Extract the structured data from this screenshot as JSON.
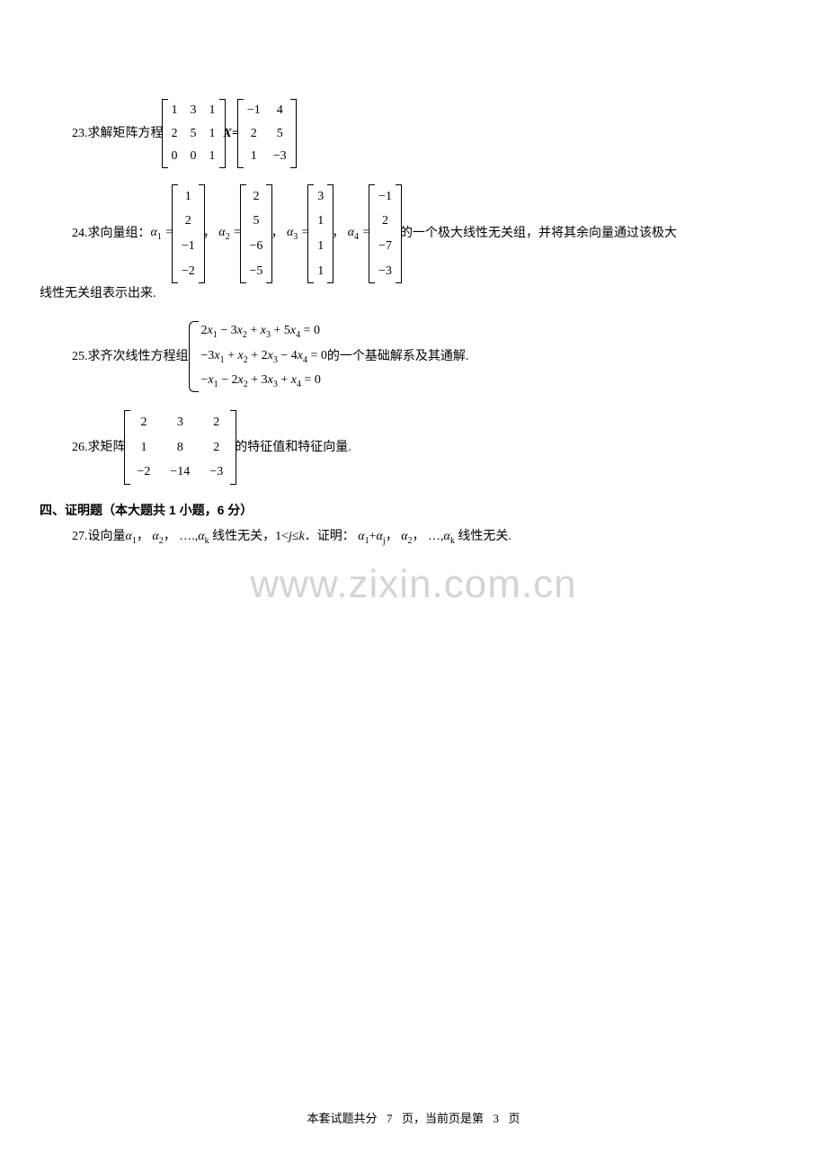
{
  "problems": {
    "p23": {
      "prefix": "23.求解矩阵方程",
      "matA": [
        [
          "1",
          "3",
          "1"
        ],
        [
          "2",
          "5",
          "1"
        ],
        [
          "0",
          "0",
          "1"
        ]
      ],
      "mid": "X=",
      "matB": [
        [
          "−1",
          "4"
        ],
        [
          "2",
          "5"
        ],
        [
          "1",
          "−3"
        ]
      ]
    },
    "p24": {
      "prefix": "24.求向量组：",
      "a_lbl": [
        "α",
        ""
      ],
      "vec1": [
        "1",
        "2",
        "−1",
        "−2"
      ],
      "vec2": [
        "2",
        "5",
        "−6",
        "−5"
      ],
      "vec3": [
        "3",
        "1",
        "1",
        "1"
      ],
      "vec4": [
        "−1",
        "2",
        "−7",
        "−3"
      ],
      "suffix": "的一个极大线性无关组，并将其余向量通过该极大",
      "line2": "线性无关组表示出来.",
      "alpha_eq": " = "
    },
    "p25": {
      "prefix": "25.求齐次线性方程组",
      "eqs": [
        "2x₁ − 3x₂ + x₃ + 5x₄ = 0",
        "−3x₁ + x₂ + 2x₃ − 4x₄ = 0",
        "−x₁ − 2x₂ + 3x₃ + x₄ = 0"
      ],
      "suffix": "的一个基础解系及其通解."
    },
    "p26": {
      "prefix": "26.求矩阵",
      "mat": [
        [
          "2",
          "3",
          "2"
        ],
        [
          "1",
          "8",
          "2"
        ],
        [
          "−2",
          "−14",
          "−3"
        ]
      ],
      "suffix": "的特征值和特征向量."
    },
    "section4": "四、证明题（本大题共 1 小题，6 分）",
    "p27": {
      "line": "27.设向量α₁， α₂， …,αₖ 线性无关，1<j≤k．证明： α₁+αⱼ， α₂， …,αₖ 线性无关."
    }
  },
  "watermark": "www.zixin.com.cn",
  "footer": {
    "t1": "本套试题共分",
    "total": "7",
    "t2": "页，当前页是第",
    "cur": "3",
    "t3": "页"
  },
  "colors": {
    "text": "#000000",
    "bg": "#ffffff",
    "wm": "rgba(160,160,160,0.45)"
  },
  "typography": {
    "body_pt": 10.5,
    "wm_pt": 33,
    "font": "SimSun/Times"
  }
}
